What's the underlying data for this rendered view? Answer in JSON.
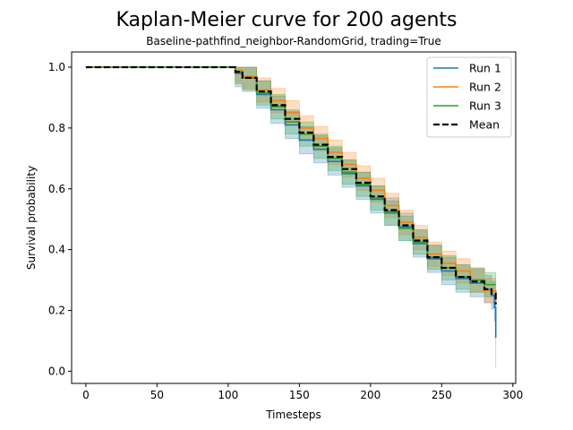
{
  "chart_data": {
    "type": "line",
    "title": "Kaplan-Meier curve for 200 agents",
    "subtitle": "Baseline-pathfind_neighbor-RandomGrid, trading=True",
    "xlabel": "Timesteps",
    "ylabel": "Survival probability",
    "xlim": [
      -10,
      302
    ],
    "ylim": [
      -0.04,
      1.05
    ],
    "xticks": [
      0,
      50,
      100,
      150,
      200,
      250,
      300
    ],
    "yticks": [
      0.0,
      0.2,
      0.4,
      0.6,
      0.8,
      1.0
    ],
    "xtick_labels": [
      "0",
      "50",
      "100",
      "150",
      "200",
      "250",
      "300"
    ],
    "ytick_labels": [
      "0.0",
      "0.2",
      "0.4",
      "0.6",
      "0.8",
      "1.0"
    ],
    "grid": false,
    "legend_position": "top-right",
    "series": [
      {
        "name": "Run 1",
        "color": "#1f77b4",
        "dash": "solid",
        "band": 0.045,
        "x": [
          0,
          100,
          105,
          110,
          120,
          130,
          140,
          150,
          160,
          170,
          180,
          190,
          200,
          210,
          220,
          230,
          240,
          250,
          260,
          270,
          280,
          285,
          287,
          288
        ],
        "y": [
          1.0,
          1.0,
          0.98,
          0.965,
          0.91,
          0.86,
          0.81,
          0.76,
          0.73,
          0.69,
          0.65,
          0.61,
          0.565,
          0.525,
          0.475,
          0.42,
          0.37,
          0.33,
          0.305,
          0.29,
          0.27,
          0.25,
          0.21,
          0.11
        ]
      },
      {
        "name": "Run 2",
        "color": "#ff7f0e",
        "dash": "solid",
        "band": 0.04,
        "x": [
          0,
          100,
          105,
          110,
          120,
          130,
          140,
          150,
          160,
          170,
          180,
          190,
          200,
          210,
          220,
          230,
          240,
          250,
          260,
          270,
          280,
          288
        ],
        "y": [
          1.0,
          1.0,
          0.99,
          0.97,
          0.925,
          0.89,
          0.85,
          0.8,
          0.765,
          0.72,
          0.68,
          0.635,
          0.595,
          0.545,
          0.49,
          0.44,
          0.385,
          0.355,
          0.33,
          0.3,
          0.265,
          0.23
        ]
      },
      {
        "name": "Run 3",
        "color": "#2ca02c",
        "dash": "solid",
        "band": 0.04,
        "x": [
          0,
          100,
          105,
          110,
          120,
          130,
          140,
          150,
          160,
          170,
          180,
          190,
          200,
          210,
          220,
          230,
          240,
          250,
          260,
          270,
          280,
          288
        ],
        "y": [
          1.0,
          1.0,
          0.985,
          0.965,
          0.915,
          0.87,
          0.82,
          0.78,
          0.74,
          0.7,
          0.655,
          0.615,
          0.57,
          0.52,
          0.47,
          0.425,
          0.375,
          0.34,
          0.31,
          0.3,
          0.285,
          0.285
        ]
      },
      {
        "name": "Mean",
        "color": "#000000",
        "dash": "dashed",
        "band": 0,
        "x": [
          0,
          100,
          105,
          110,
          120,
          130,
          140,
          150,
          160,
          170,
          180,
          190,
          200,
          210,
          220,
          230,
          240,
          250,
          260,
          270,
          280,
          285,
          288
        ],
        "y": [
          1.0,
          1.0,
          0.985,
          0.965,
          0.92,
          0.875,
          0.83,
          0.785,
          0.745,
          0.705,
          0.665,
          0.62,
          0.575,
          0.53,
          0.48,
          0.43,
          0.375,
          0.34,
          0.31,
          0.295,
          0.27,
          0.255,
          0.22
        ]
      }
    ]
  }
}
